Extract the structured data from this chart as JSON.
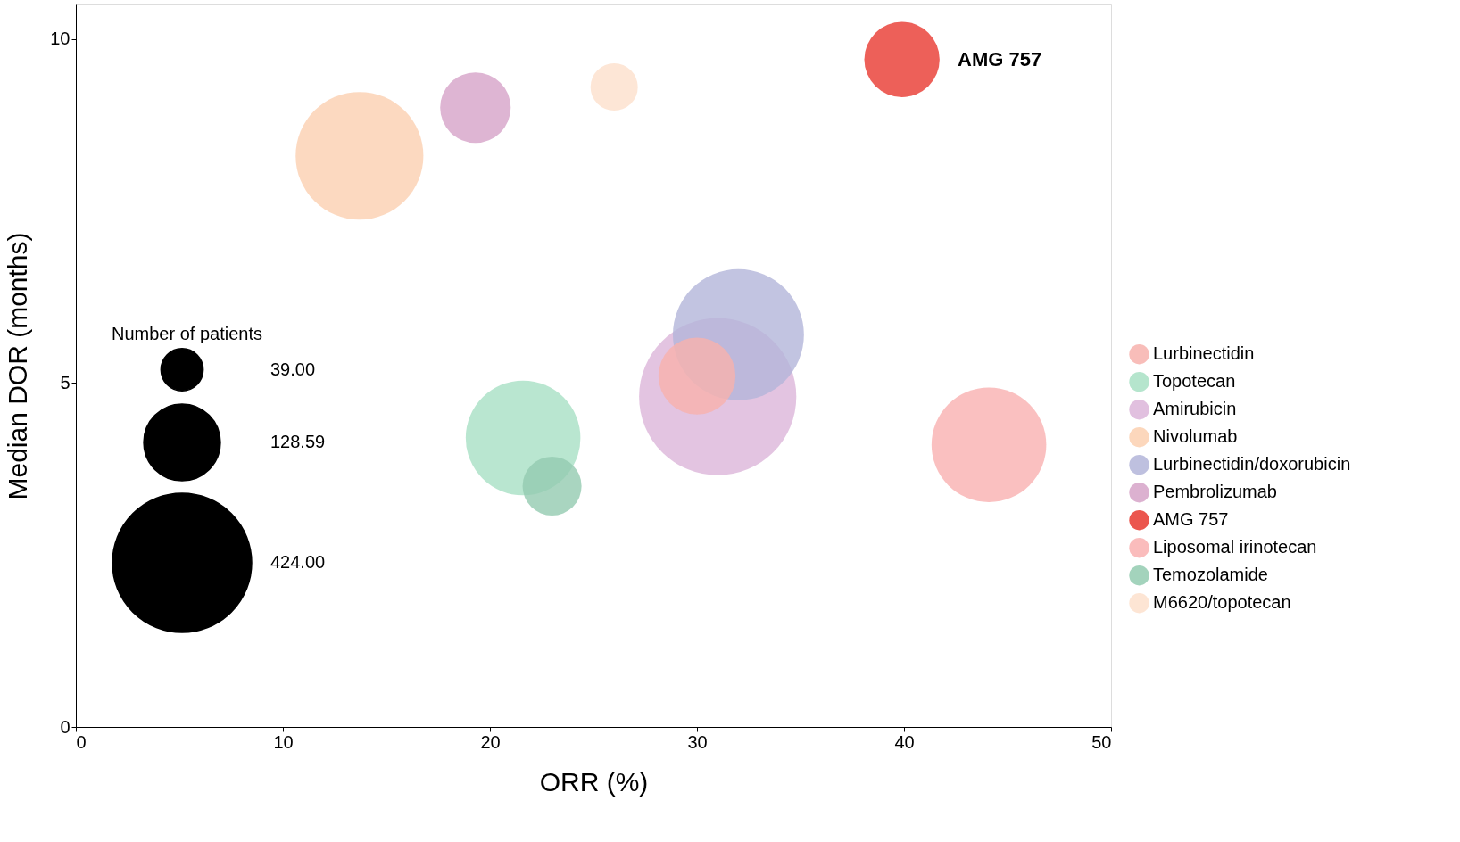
{
  "chart_data": {
    "type": "bubble",
    "xlabel": "ORR (%)",
    "ylabel": "Median DOR (months)",
    "legend_title": "Number of patients",
    "xlim": [
      0,
      50
    ],
    "xticks": [
      0,
      10,
      20,
      30,
      40,
      50
    ],
    "ylim": [
      0,
      10.5
    ],
    "yticks": [
      0,
      5,
      10
    ],
    "grid": false,
    "legend": "right",
    "size_legend": [
      {
        "value": 39,
        "label": "39.00"
      },
      {
        "value": 128.59,
        "label": "128.59"
      },
      {
        "value": 424,
        "label": "424.00"
      }
    ],
    "annotations": [
      {
        "text": "AMG 757",
        "x": 40,
        "y": 9.7
      }
    ],
    "series": [
      {
        "name": "Lurbinectidin",
        "color": "#f7b2ad",
        "x": [
          30
        ],
        "values": [
          5.1
        ],
        "sizes": [
          130
        ]
      },
      {
        "name": "Topotecan",
        "color": "#a8e0c4",
        "x": [
          21.6
        ],
        "values": [
          4.2
        ],
        "sizes": [
          288
        ]
      },
      {
        "name": "Amirubicin",
        "color": "#dcb5d9",
        "x": [
          31
        ],
        "values": [
          4.8
        ],
        "sizes": [
          541
        ]
      },
      {
        "name": "Nivolumab",
        "color": "#fbd0b0",
        "x": [
          13.7
        ],
        "values": [
          8.3
        ],
        "sizes": [
          357
        ]
      },
      {
        "name": "Lurbinectidin/doxorubicin",
        "color": "#b3b5d9",
        "x": [
          32
        ],
        "values": [
          5.7
        ],
        "sizes": [
          376
        ]
      },
      {
        "name": "Pembrolizumab",
        "color": "#d6a3c8",
        "x": [
          19.3
        ],
        "values": [
          9.0
        ],
        "sizes": [
          109
        ]
      },
      {
        "name": "AMG 757",
        "color": "#e8382f",
        "x": [
          39.9
        ],
        "values": [
          9.7
        ],
        "sizes": [
          124
        ]
      },
      {
        "name": "Liposomal irinotecan",
        "color": "#f9b0b0",
        "x": [
          44.1
        ],
        "values": [
          4.1
        ],
        "sizes": [
          288
        ]
      },
      {
        "name": "Temozolamide",
        "color": "#93cbb0",
        "x": [
          23
        ],
        "values": [
          3.5
        ],
        "sizes": [
          76
        ]
      },
      {
        "name": "M6620/topotecan",
        "color": "#fde0cc",
        "x": [
          26
        ],
        "values": [
          9.3
        ],
        "sizes": [
          49
        ]
      }
    ]
  }
}
